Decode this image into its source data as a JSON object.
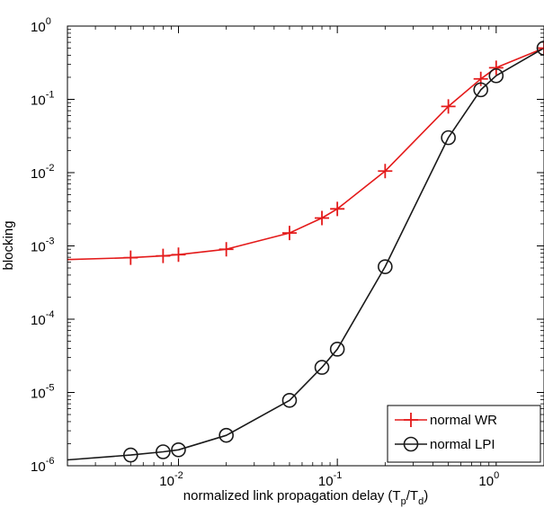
{
  "chart_data": {
    "type": "line",
    "title": "",
    "xlabel_main": "normalized link propagation delay (T",
    "xlabel_sub1": "p",
    "xlabel_mid": "/T",
    "xlabel_sub2": "d",
    "xlabel_end": ")",
    "ylabel": "blocking",
    "xscale": "log",
    "yscale": "log",
    "xlim": [
      0.002,
      2
    ],
    "ylim": [
      1e-06,
      1
    ],
    "grid": false,
    "legend_position": "bottom-right",
    "x_ticks": [
      {
        "base": "10",
        "exp": "-2",
        "value": 0.01
      },
      {
        "base": "10",
        "exp": "-1",
        "value": 0.1
      },
      {
        "base": "10",
        "exp": "0",
        "value": 1
      }
    ],
    "y_ticks": [
      {
        "base": "10",
        "exp": "-6",
        "value": 1e-06
      },
      {
        "base": "10",
        "exp": "-5",
        "value": 1e-05
      },
      {
        "base": "10",
        "exp": "-4",
        "value": 0.0001
      },
      {
        "base": "10",
        "exp": "-3",
        "value": 0.001
      },
      {
        "base": "10",
        "exp": "-2",
        "value": 0.01
      },
      {
        "base": "10",
        "exp": "-1",
        "value": 0.1
      },
      {
        "base": "10",
        "exp": "0",
        "value": 1
      }
    ],
    "series": [
      {
        "name": "normal WR",
        "color": "#e41a1a",
        "marker": "plus",
        "curve": [
          [
            0.002,
            0.00065
          ],
          [
            0.005,
            0.00069
          ],
          [
            0.008,
            0.00073
          ],
          [
            0.01,
            0.00076
          ],
          [
            0.02,
            0.0009
          ],
          [
            0.05,
            0.0015
          ],
          [
            0.08,
            0.0024
          ],
          [
            0.1,
            0.0032
          ],
          [
            0.2,
            0.0105
          ],
          [
            0.5,
            0.08
          ],
          [
            0.8,
            0.19
          ],
          [
            1.0,
            0.27
          ],
          [
            2.0,
            0.5
          ]
        ],
        "points": [
          [
            0.005,
            0.00069
          ],
          [
            0.008,
            0.00073
          ],
          [
            0.01,
            0.00076
          ],
          [
            0.02,
            0.0009
          ],
          [
            0.05,
            0.0015
          ],
          [
            0.08,
            0.0024
          ],
          [
            0.1,
            0.0032
          ],
          [
            0.2,
            0.0105
          ],
          [
            0.5,
            0.08
          ],
          [
            0.8,
            0.19
          ],
          [
            1.0,
            0.27
          ],
          [
            2.0,
            0.5
          ]
        ]
      },
      {
        "name": "normal LPI",
        "color": "#1a1a1a",
        "marker": "circle",
        "curve": [
          [
            0.002,
            1.2e-06
          ],
          [
            0.005,
            1.4e-06
          ],
          [
            0.008,
            1.55e-06
          ],
          [
            0.01,
            1.65e-06
          ],
          [
            0.02,
            2.6e-06
          ],
          [
            0.05,
            7.8e-06
          ],
          [
            0.08,
            2.2e-05
          ],
          [
            0.1,
            3.9e-05
          ],
          [
            0.2,
            0.00052
          ],
          [
            0.5,
            0.03
          ],
          [
            0.8,
            0.135
          ],
          [
            1.0,
            0.21
          ],
          [
            2.0,
            0.5
          ]
        ],
        "points": [
          [
            0.005,
            1.4e-06
          ],
          [
            0.008,
            1.55e-06
          ],
          [
            0.01,
            1.65e-06
          ],
          [
            0.02,
            2.6e-06
          ],
          [
            0.05,
            7.8e-06
          ],
          [
            0.08,
            2.2e-05
          ],
          [
            0.1,
            3.9e-05
          ],
          [
            0.2,
            0.00052
          ],
          [
            0.5,
            0.03
          ],
          [
            0.8,
            0.135
          ],
          [
            1.0,
            0.21
          ],
          [
            2.0,
            0.5
          ]
        ]
      }
    ]
  }
}
